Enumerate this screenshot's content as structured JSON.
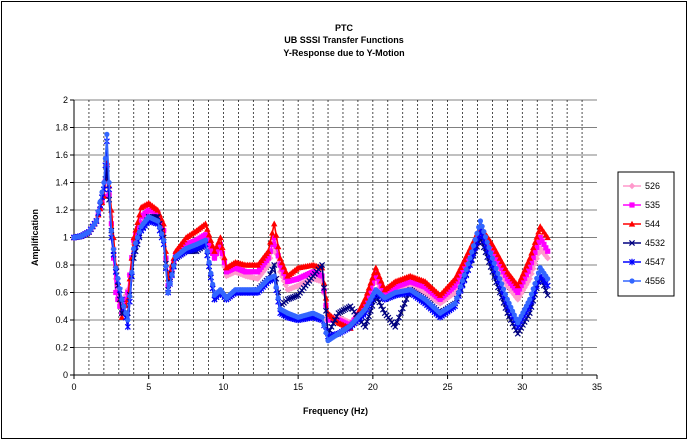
{
  "chart_data": {
    "type": "line",
    "title": [
      "PTC",
      "UB SSSI Transfer Functions",
      "Y-Response due to Y-Motion"
    ],
    "xlabel": "Frequency (Hz)",
    "ylabel": "Amplification",
    "xlim": [
      0,
      35
    ],
    "ylim": [
      0,
      2
    ],
    "xticks": [
      0,
      5,
      10,
      15,
      20,
      25,
      30,
      35
    ],
    "yticks": [
      0,
      0.2,
      0.4,
      0.6,
      0.8,
      1,
      1.2,
      1.4,
      1.6,
      1.8,
      2
    ],
    "grid": "major dashed vertical minor, solid horizontal",
    "legend_position": "right",
    "series": [
      {
        "name": "526",
        "color": "#ff99cc",
        "marker": "diamond",
        "points": [
          [
            0,
            1
          ],
          [
            0.5,
            1.01
          ],
          [
            1,
            1.04
          ],
          [
            1.5,
            1.12
          ],
          [
            2,
            1.3
          ],
          [
            2.2,
            1.48
          ],
          [
            2.5,
            1.15
          ],
          [
            2.8,
            0.7
          ],
          [
            3.2,
            0.5
          ],
          [
            3.6,
            0.62
          ],
          [
            4,
            0.95
          ],
          [
            4.5,
            1.1
          ],
          [
            5,
            1.15
          ],
          [
            5.6,
            1.15
          ],
          [
            6,
            1.05
          ],
          [
            6.3,
            0.65
          ],
          [
            6.8,
            0.85
          ],
          [
            7.5,
            0.92
          ],
          [
            8.2,
            0.95
          ],
          [
            8.8,
            1.0
          ],
          [
            9.4,
            0.85
          ],
          [
            9.8,
            0.92
          ],
          [
            10.2,
            0.72
          ],
          [
            10.8,
            0.75
          ],
          [
            11.5,
            0.72
          ],
          [
            12.3,
            0.7
          ],
          [
            13,
            0.8
          ],
          [
            13.4,
            0.95
          ],
          [
            13.8,
            0.75
          ],
          [
            14.3,
            0.62
          ],
          [
            15,
            0.65
          ],
          [
            16,
            0.7
          ],
          [
            16.6,
            0.68
          ],
          [
            17,
            0.42
          ],
          [
            17.7,
            0.42
          ],
          [
            18.5,
            0.38
          ],
          [
            19.5,
            0.5
          ],
          [
            20.2,
            0.7
          ],
          [
            20.8,
            0.55
          ],
          [
            21.5,
            0.6
          ],
          [
            22.5,
            0.65
          ],
          [
            23.5,
            0.6
          ],
          [
            24.5,
            0.52
          ],
          [
            25.5,
            0.6
          ],
          [
            26.5,
            0.82
          ],
          [
            27.2,
            1.0
          ],
          [
            28,
            0.85
          ],
          [
            29,
            0.65
          ],
          [
            29.7,
            0.55
          ],
          [
            30.5,
            0.7
          ],
          [
            31.2,
            0.92
          ],
          [
            31.7,
            0.85
          ]
        ]
      },
      {
        "name": "535",
        "color": "#ff00ff",
        "marker": "square",
        "points": [
          [
            0,
            1
          ],
          [
            0.5,
            1.01
          ],
          [
            1,
            1.04
          ],
          [
            1.5,
            1.12
          ],
          [
            2,
            1.3
          ],
          [
            2.2,
            1.52
          ],
          [
            2.5,
            1.1
          ],
          [
            2.8,
            0.6
          ],
          [
            3.2,
            0.45
          ],
          [
            3.6,
            0.6
          ],
          [
            4,
            0.98
          ],
          [
            4.5,
            1.15
          ],
          [
            5,
            1.2
          ],
          [
            5.6,
            1.18
          ],
          [
            6,
            1.05
          ],
          [
            6.3,
            0.65
          ],
          [
            6.8,
            0.88
          ],
          [
            7.5,
            0.95
          ],
          [
            8.2,
            0.98
          ],
          [
            8.8,
            1.02
          ],
          [
            9.4,
            0.85
          ],
          [
            9.8,
            0.95
          ],
          [
            10.2,
            0.75
          ],
          [
            10.8,
            0.78
          ],
          [
            11.5,
            0.75
          ],
          [
            12.3,
            0.75
          ],
          [
            13,
            0.85
          ],
          [
            13.4,
            1.0
          ],
          [
            13.8,
            0.8
          ],
          [
            14.3,
            0.68
          ],
          [
            15,
            0.7
          ],
          [
            16,
            0.75
          ],
          [
            16.6,
            0.72
          ],
          [
            17,
            0.4
          ],
          [
            17.7,
            0.4
          ],
          [
            18.5,
            0.36
          ],
          [
            19.5,
            0.52
          ],
          [
            20.2,
            0.74
          ],
          [
            20.8,
            0.58
          ],
          [
            21.5,
            0.64
          ],
          [
            22.5,
            0.68
          ],
          [
            23.5,
            0.64
          ],
          [
            24.5,
            0.55
          ],
          [
            25.5,
            0.65
          ],
          [
            26.5,
            0.88
          ],
          [
            27.2,
            1.04
          ],
          [
            28,
            0.9
          ],
          [
            29,
            0.7
          ],
          [
            29.7,
            0.6
          ],
          [
            30.5,
            0.78
          ],
          [
            31.2,
            1.0
          ],
          [
            31.7,
            0.9
          ]
        ]
      },
      {
        "name": "544",
        "color": "#ff0000",
        "marker": "triangle",
        "points": [
          [
            0,
            1
          ],
          [
            0.5,
            1.01
          ],
          [
            1,
            1.04
          ],
          [
            1.5,
            1.12
          ],
          [
            2,
            1.3
          ],
          [
            2.2,
            1.55
          ],
          [
            2.5,
            1.2
          ],
          [
            2.8,
            0.8
          ],
          [
            3.2,
            0.42
          ],
          [
            3.6,
            0.55
          ],
          [
            4,
            1.0
          ],
          [
            4.5,
            1.22
          ],
          [
            5,
            1.25
          ],
          [
            5.6,
            1.2
          ],
          [
            6,
            1.1
          ],
          [
            6.3,
            0.7
          ],
          [
            6.8,
            0.9
          ],
          [
            7.5,
            1.0
          ],
          [
            8.2,
            1.05
          ],
          [
            8.8,
            1.1
          ],
          [
            9.4,
            0.9
          ],
          [
            9.8,
            1.0
          ],
          [
            10.2,
            0.78
          ],
          [
            10.8,
            0.82
          ],
          [
            11.5,
            0.8
          ],
          [
            12.3,
            0.8
          ],
          [
            13,
            0.9
          ],
          [
            13.4,
            1.1
          ],
          [
            13.8,
            0.85
          ],
          [
            14.3,
            0.72
          ],
          [
            15,
            0.78
          ],
          [
            16,
            0.8
          ],
          [
            16.6,
            0.78
          ],
          [
            17,
            0.45
          ],
          [
            17.7,
            0.38
          ],
          [
            18.5,
            0.34
          ],
          [
            19.5,
            0.56
          ],
          [
            20.2,
            0.78
          ],
          [
            20.8,
            0.62
          ],
          [
            21.5,
            0.68
          ],
          [
            22.5,
            0.72
          ],
          [
            23.5,
            0.68
          ],
          [
            24.5,
            0.58
          ],
          [
            25.5,
            0.7
          ],
          [
            26.5,
            0.92
          ],
          [
            27.2,
            1.08
          ],
          [
            28,
            0.95
          ],
          [
            29,
            0.75
          ],
          [
            29.7,
            0.65
          ],
          [
            30.5,
            0.85
          ],
          [
            31.2,
            1.08
          ],
          [
            31.7,
            1.0
          ]
        ]
      },
      {
        "name": "4532",
        "color": "#000080",
        "marker": "x",
        "points": [
          [
            0,
            1
          ],
          [
            0.5,
            1.01
          ],
          [
            1,
            1.04
          ],
          [
            1.5,
            1.12
          ],
          [
            2,
            1.35
          ],
          [
            2.2,
            1.5
          ],
          [
            2.5,
            1.05
          ],
          [
            2.8,
            0.75
          ],
          [
            3.2,
            0.45
          ],
          [
            3.6,
            0.45
          ],
          [
            4,
            0.85
          ],
          [
            4.5,
            1.05
          ],
          [
            5,
            1.15
          ],
          [
            5.6,
            1.15
          ],
          [
            6,
            1.0
          ],
          [
            6.3,
            0.62
          ],
          [
            6.8,
            0.85
          ],
          [
            7.5,
            0.9
          ],
          [
            8.2,
            0.9
          ],
          [
            8.8,
            0.95
          ],
          [
            9.4,
            0.55
          ],
          [
            9.8,
            0.6
          ],
          [
            10.2,
            0.55
          ],
          [
            10.8,
            0.6
          ],
          [
            11.5,
            0.6
          ],
          [
            12.3,
            0.62
          ],
          [
            13,
            0.7
          ],
          [
            13.4,
            0.8
          ],
          [
            13.8,
            0.5
          ],
          [
            14.3,
            0.55
          ],
          [
            15,
            0.58
          ],
          [
            16,
            0.72
          ],
          [
            16.6,
            0.8
          ],
          [
            17,
            0.3
          ],
          [
            17.7,
            0.45
          ],
          [
            18.5,
            0.5
          ],
          [
            19,
            0.42
          ],
          [
            19.5,
            0.35
          ],
          [
            20.2,
            0.58
          ],
          [
            20.8,
            0.45
          ],
          [
            21.5,
            0.35
          ],
          [
            22.5,
            0.62
          ],
          [
            23.5,
            0.55
          ],
          [
            24.5,
            0.45
          ],
          [
            25.5,
            0.52
          ],
          [
            26.5,
            0.8
          ],
          [
            27.2,
            1.0
          ],
          [
            28,
            0.75
          ],
          [
            29,
            0.45
          ],
          [
            29.7,
            0.3
          ],
          [
            30.5,
            0.45
          ],
          [
            31.2,
            0.72
          ],
          [
            31.7,
            0.58
          ]
        ]
      },
      {
        "name": "4547",
        "color": "#0000ff",
        "marker": "star",
        "points": [
          [
            0,
            1
          ],
          [
            0.5,
            1.01
          ],
          [
            1,
            1.04
          ],
          [
            1.5,
            1.12
          ],
          [
            2,
            1.35
          ],
          [
            2.2,
            1.7
          ],
          [
            2.5,
            1.0
          ],
          [
            2.8,
            0.75
          ],
          [
            3.2,
            0.55
          ],
          [
            3.6,
            0.35
          ],
          [
            4,
            0.9
          ],
          [
            4.5,
            1.05
          ],
          [
            5,
            1.12
          ],
          [
            5.6,
            1.1
          ],
          [
            6,
            0.95
          ],
          [
            6.3,
            0.6
          ],
          [
            6.8,
            0.85
          ],
          [
            7.5,
            0.9
          ],
          [
            8.2,
            0.92
          ],
          [
            8.8,
            0.95
          ],
          [
            9.4,
            0.55
          ],
          [
            9.8,
            0.6
          ],
          [
            10.2,
            0.55
          ],
          [
            10.8,
            0.6
          ],
          [
            11.5,
            0.6
          ],
          [
            12.3,
            0.6
          ],
          [
            13,
            0.68
          ],
          [
            13.4,
            0.7
          ],
          [
            13.8,
            0.45
          ],
          [
            14.3,
            0.42
          ],
          [
            15,
            0.4
          ],
          [
            16,
            0.42
          ],
          [
            16.6,
            0.4
          ],
          [
            17,
            0.28
          ],
          [
            17.7,
            0.3
          ],
          [
            18.5,
            0.35
          ],
          [
            19.5,
            0.45
          ],
          [
            20.2,
            0.6
          ],
          [
            20.8,
            0.55
          ],
          [
            21.5,
            0.58
          ],
          [
            22.5,
            0.6
          ],
          [
            23.5,
            0.52
          ],
          [
            24.5,
            0.42
          ],
          [
            25.5,
            0.5
          ],
          [
            26.5,
            0.8
          ],
          [
            27.2,
            1.05
          ],
          [
            28,
            0.8
          ],
          [
            29,
            0.5
          ],
          [
            29.7,
            0.35
          ],
          [
            30.5,
            0.5
          ],
          [
            31.2,
            0.72
          ],
          [
            31.7,
            0.65
          ]
        ]
      },
      {
        "name": "4556",
        "color": "#3366ff",
        "marker": "circle",
        "points": [
          [
            0,
            1
          ],
          [
            0.5,
            1.01
          ],
          [
            1,
            1.04
          ],
          [
            1.5,
            1.12
          ],
          [
            2,
            1.4
          ],
          [
            2.2,
            1.75
          ],
          [
            2.5,
            1.05
          ],
          [
            2.8,
            0.78
          ],
          [
            3.2,
            0.55
          ],
          [
            3.6,
            0.4
          ],
          [
            4,
            0.92
          ],
          [
            4.5,
            1.08
          ],
          [
            5,
            1.15
          ],
          [
            5.6,
            1.12
          ],
          [
            6,
            0.98
          ],
          [
            6.3,
            0.6
          ],
          [
            6.8,
            0.86
          ],
          [
            7.5,
            0.92
          ],
          [
            8.2,
            0.95
          ],
          [
            8.8,
            0.98
          ],
          [
            9.4,
            0.58
          ],
          [
            9.8,
            0.62
          ],
          [
            10.2,
            0.56
          ],
          [
            10.8,
            0.62
          ],
          [
            11.5,
            0.62
          ],
          [
            12.3,
            0.62
          ],
          [
            13,
            0.7
          ],
          [
            13.4,
            0.72
          ],
          [
            13.8,
            0.48
          ],
          [
            14.3,
            0.45
          ],
          [
            15,
            0.42
          ],
          [
            16,
            0.45
          ],
          [
            16.6,
            0.42
          ],
          [
            17,
            0.25
          ],
          [
            17.7,
            0.3
          ],
          [
            18.5,
            0.36
          ],
          [
            19.5,
            0.48
          ],
          [
            20.2,
            0.62
          ],
          [
            20.8,
            0.56
          ],
          [
            21.5,
            0.6
          ],
          [
            22.5,
            0.62
          ],
          [
            23.5,
            0.55
          ],
          [
            24.5,
            0.45
          ],
          [
            25.5,
            0.52
          ],
          [
            26.5,
            0.85
          ],
          [
            27.2,
            1.12
          ],
          [
            28,
            0.85
          ],
          [
            29,
            0.55
          ],
          [
            29.7,
            0.38
          ],
          [
            30.5,
            0.55
          ],
          [
            31.2,
            0.78
          ],
          [
            31.7,
            0.7
          ]
        ]
      }
    ]
  }
}
